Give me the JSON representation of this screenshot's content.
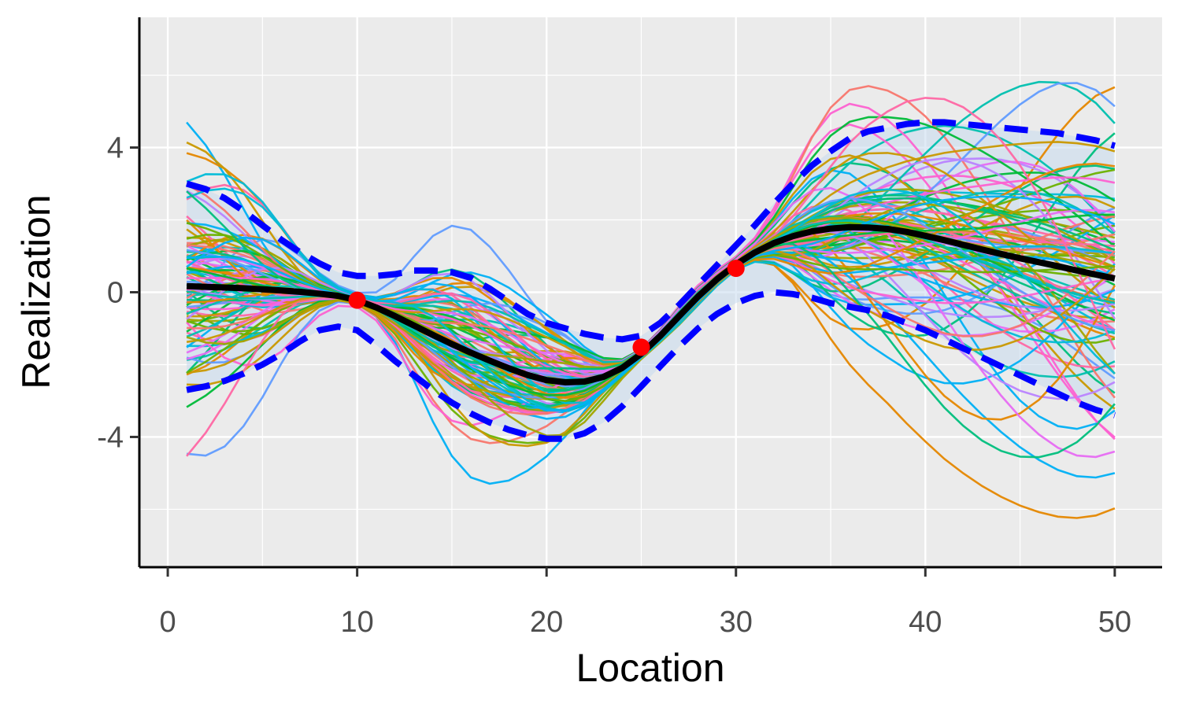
{
  "chart_data": {
    "type": "line",
    "title": "",
    "xlabel": "Location",
    "ylabel": "Realization",
    "xlim": [
      -1.5,
      52.5
    ],
    "ylim": [
      -7.6,
      7.6
    ],
    "x_ticks": [
      0,
      10,
      20,
      30,
      40,
      50
    ],
    "y_ticks": [
      -4,
      0,
      4
    ],
    "grid": true,
    "panel_background": "#ebebeb",
    "x": [
      1,
      2,
      3,
      4,
      5,
      6,
      7,
      8,
      9,
      10,
      11,
      12,
      13,
      14,
      15,
      16,
      17,
      18,
      19,
      20,
      21,
      22,
      23,
      24,
      25,
      26,
      27,
      28,
      29,
      30,
      31,
      32,
      33,
      34,
      35,
      36,
      37,
      38,
      39,
      40,
      41,
      42,
      43,
      44,
      45,
      46,
      47,
      48,
      49,
      50
    ],
    "mean_curve": {
      "color": "#000000",
      "y": [
        0.17,
        0.15,
        0.13,
        0.11,
        0.08,
        0.05,
        0.01,
        -0.04,
        -0.1,
        -0.22,
        -0.42,
        -0.66,
        -0.92,
        -1.18,
        -1.43,
        -1.67,
        -1.89,
        -2.1,
        -2.29,
        -2.43,
        -2.49,
        -2.47,
        -2.34,
        -2.09,
        -1.7,
        -1.21,
        -0.66,
        -0.12,
        0.36,
        0.77,
        1.1,
        1.36,
        1.55,
        1.68,
        1.76,
        1.8,
        1.79,
        1.75,
        1.67,
        1.56,
        1.44,
        1.31,
        1.18,
        1.06,
        0.94,
        0.83,
        0.72,
        0.6,
        0.49,
        0.38
      ]
    },
    "upper_band": {
      "color": "#0000ff",
      "y": [
        3.0,
        2.85,
        2.6,
        2.25,
        1.85,
        1.45,
        1.1,
        0.8,
        0.55,
        0.45,
        0.45,
        0.5,
        0.6,
        0.6,
        0.55,
        0.4,
        0.1,
        -0.25,
        -0.6,
        -0.85,
        -1.0,
        -1.15,
        -1.25,
        -1.3,
        -1.2,
        -0.85,
        -0.35,
        0.2,
        0.75,
        1.3,
        1.85,
        2.45,
        3.0,
        3.5,
        3.9,
        4.25,
        4.45,
        4.55,
        4.65,
        4.7,
        4.7,
        4.65,
        4.6,
        4.55,
        4.5,
        4.45,
        4.4,
        4.3,
        4.2,
        4.05
      ]
    },
    "lower_band": {
      "color": "#0000ff",
      "y": [
        -2.7,
        -2.6,
        -2.45,
        -2.25,
        -2.0,
        -1.7,
        -1.35,
        -1.05,
        -0.95,
        -1.05,
        -1.45,
        -1.9,
        -2.3,
        -2.7,
        -3.05,
        -3.35,
        -3.6,
        -3.8,
        -3.95,
        -4.05,
        -4.05,
        -3.9,
        -3.6,
        -3.15,
        -2.6,
        -2.05,
        -1.5,
        -1.0,
        -0.6,
        -0.3,
        -0.1,
        0.0,
        -0.05,
        -0.15,
        -0.3,
        -0.4,
        -0.5,
        -0.65,
        -0.85,
        -1.05,
        -1.3,
        -1.55,
        -1.8,
        -2.05,
        -2.3,
        -2.55,
        -2.8,
        -3.05,
        -3.25,
        -3.4
      ]
    },
    "highlight_points": {
      "color": "#ff0000",
      "x": [
        10,
        25,
        30
      ],
      "y": [
        -0.22,
        -1.52,
        0.66
      ]
    },
    "realizations": {
      "count": 100,
      "colors": [
        "#f8766d",
        "#e58700",
        "#c99800",
        "#a3a500",
        "#6bb100",
        "#00ba38",
        "#00bf7d",
        "#00c0af",
        "#00bcd8",
        "#00b0f6",
        "#619cff",
        "#b983ff",
        "#e76bf3",
        "#fd61d1",
        "#ff67a4"
      ]
    }
  }
}
